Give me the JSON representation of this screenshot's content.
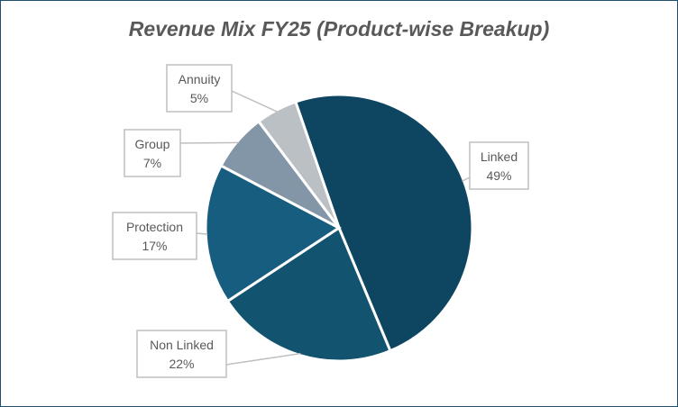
{
  "chart_data": {
    "type": "pie",
    "title": "Revenue Mix FY25 (Product-wise Breakup)",
    "start_angle_deg": -19,
    "slices": [
      {
        "label": "Linked",
        "value": 49,
        "display": "49%",
        "color": "#0e4661"
      },
      {
        "label": "Non Linked",
        "value": 22,
        "display": "22%",
        "color": "#12536f"
      },
      {
        "label": "Protection",
        "value": 17,
        "display": "17%",
        "color": "#175d7f"
      },
      {
        "label": "Group",
        "value": 7,
        "display": "7%",
        "color": "#8396a8"
      },
      {
        "label": "Annuity",
        "value": 5,
        "display": "5%",
        "color": "#bbc0c4"
      }
    ]
  }
}
